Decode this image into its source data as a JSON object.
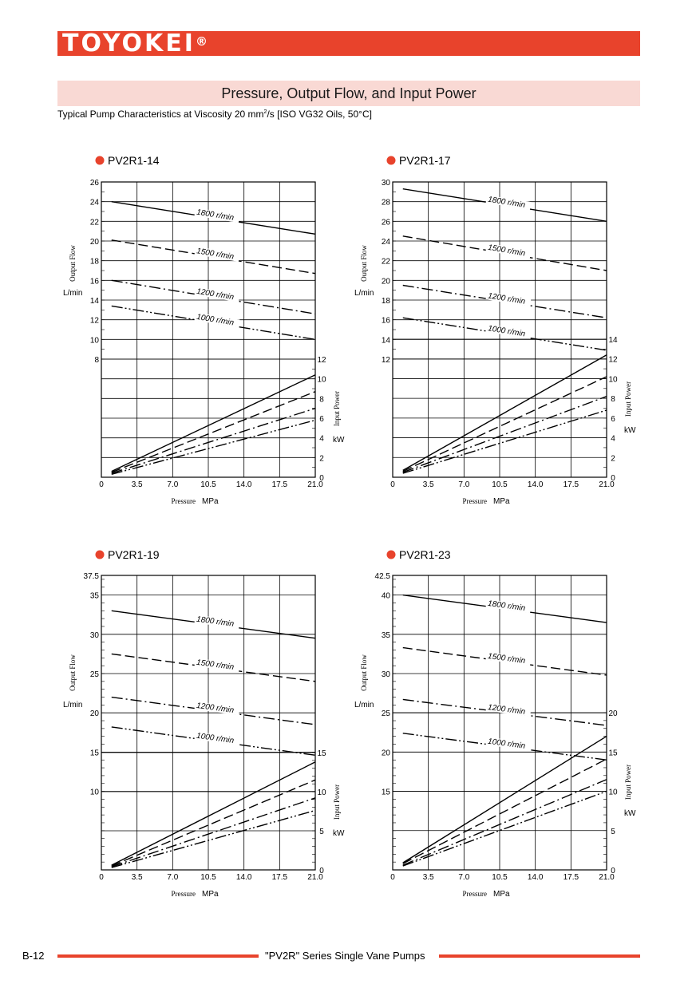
{
  "brand": {
    "logo_text": "TOYOKEI",
    "registered_mark": "®"
  },
  "section_title": "Pressure, Output Flow, and Input Power",
  "subtitle": {
    "text": "Typical Pump Characteristics at Viscosity 20 mm",
    "sup": "2",
    "text_after": "/s [ISO VG32 Oils, 50°C]"
  },
  "footer": {
    "page": "B-12",
    "series": "\"PV2R\" Series Single Vane Pumps"
  },
  "colors": {
    "accent": "#e8432c",
    "band": "#f9d9d4"
  },
  "chart_data": [
    {
      "type": "line",
      "title": "PV2R1-14",
      "xlabel": "Pressure",
      "xunit": "MPa",
      "ylabel": "Output Flow",
      "yunit": "L/min",
      "y2label": "Input Power",
      "y2unit": "kW",
      "xlim": [
        0,
        21.0
      ],
      "x_ticks": [
        "0",
        "3.5",
        "7.0",
        "10.5",
        "14.0",
        "17.5",
        "21.0"
      ],
      "flow_axis": {
        "min": 8,
        "max": 26,
        "ticks": [
          "8",
          "10",
          "12",
          "14",
          "16",
          "18",
          "20",
          "22",
          "24",
          "26"
        ]
      },
      "power_axis": {
        "min": 0,
        "max": 12,
        "ticks": [
          "0",
          "2",
          "4",
          "6",
          "8",
          "10",
          "12"
        ]
      },
      "flow_series": [
        {
          "name": "1800 r/min",
          "style": "solid",
          "x": [
            1,
            21
          ],
          "y": [
            24.0,
            20.7
          ]
        },
        {
          "name": "1500 r/min",
          "style": "dash",
          "x": [
            1,
            21
          ],
          "y": [
            20.1,
            16.7
          ]
        },
        {
          "name": "1200 r/min",
          "style": "dashdot",
          "x": [
            1,
            21
          ],
          "y": [
            16.0,
            12.6
          ]
        },
        {
          "name": "1000 r/min",
          "style": "dashdotdot",
          "x": [
            1,
            21
          ],
          "y": [
            13.4,
            10.0
          ]
        }
      ],
      "power_series": [
        {
          "style": "solid",
          "x": [
            1,
            21
          ],
          "y": [
            0.6,
            10.4
          ]
        },
        {
          "style": "dash",
          "x": [
            1,
            21
          ],
          "y": [
            0.5,
            8.7
          ]
        },
        {
          "style": "dashdot",
          "x": [
            1,
            21
          ],
          "y": [
            0.4,
            7.0
          ]
        },
        {
          "style": "dashdotdot",
          "x": [
            1,
            21
          ],
          "y": [
            0.3,
            5.8
          ]
        }
      ]
    },
    {
      "type": "line",
      "title": "PV2R1-17",
      "xlabel": "Pressure",
      "xunit": "MPa",
      "ylabel": "Output Flow",
      "yunit": "L/min",
      "y2label": "Input Power",
      "y2unit": "kW",
      "xlim": [
        0,
        21.0
      ],
      "x_ticks": [
        "0",
        "3.5",
        "7.0",
        "10.5",
        "14.0",
        "17.5",
        "21.0"
      ],
      "flow_axis": {
        "min": 12,
        "max": 30,
        "ticks": [
          "12",
          "14",
          "16",
          "18",
          "20",
          "22",
          "24",
          "26",
          "28",
          "30"
        ]
      },
      "power_axis": {
        "min": 0,
        "max": 14,
        "ticks": [
          "0",
          "2",
          "4",
          "6",
          "8",
          "10",
          "12",
          "14"
        ]
      },
      "flow_series": [
        {
          "name": "1800 r/min",
          "style": "solid",
          "x": [
            1,
            21
          ],
          "y": [
            29.3,
            26.0
          ]
        },
        {
          "name": "1500 r/min",
          "style": "dash",
          "x": [
            1,
            21
          ],
          "y": [
            24.5,
            21.0
          ]
        },
        {
          "name": "1200 r/min",
          "style": "dashdot",
          "x": [
            1,
            21
          ],
          "y": [
            19.5,
            16.2
          ]
        },
        {
          "name": "1000 r/min",
          "style": "dashdotdot",
          "x": [
            1,
            21
          ],
          "y": [
            16.2,
            12.9
          ]
        }
      ],
      "power_series": [
        {
          "style": "solid",
          "x": [
            1,
            21
          ],
          "y": [
            0.7,
            12.4
          ]
        },
        {
          "style": "dash",
          "x": [
            1,
            21
          ],
          "y": [
            0.6,
            10.2
          ]
        },
        {
          "style": "dashdot",
          "x": [
            1,
            21
          ],
          "y": [
            0.5,
            8.2
          ]
        },
        {
          "style": "dashdotdot",
          "x": [
            1,
            21
          ],
          "y": [
            0.4,
            6.8
          ]
        }
      ]
    },
    {
      "type": "line",
      "title": "PV2R1-19",
      "xlabel": "Pressure",
      "xunit": "MPa",
      "ylabel": "Output Flow",
      "yunit": "L/min",
      "y2label": "Input Power",
      "y2unit": "kW",
      "xlim": [
        0,
        21.0
      ],
      "x_ticks": [
        "0",
        "3.5",
        "7.0",
        "10.5",
        "14.0",
        "17.5",
        "21.0"
      ],
      "flow_axis": {
        "min": 0,
        "max": 37.5,
        "ticks": [
          "10",
          "15",
          "20",
          "25",
          "30",
          "35",
          "37.5"
        ]
      },
      "power_axis": {
        "min": 0,
        "max": 15,
        "ticks": [
          "0",
          "5",
          "10",
          "15"
        ]
      },
      "flow_series": [
        {
          "name": "1800 r/min",
          "style": "solid",
          "x": [
            1,
            21
          ],
          "y": [
            33.0,
            29.5
          ]
        },
        {
          "name": "1500 r/min",
          "style": "dash",
          "x": [
            1,
            21
          ],
          "y": [
            27.5,
            24.0
          ]
        },
        {
          "name": "1200 r/min",
          "style": "dashdot",
          "x": [
            1,
            21
          ],
          "y": [
            22.0,
            18.5
          ]
        },
        {
          "name": "1000 r/min",
          "style": "dashdotdot",
          "x": [
            1,
            21
          ],
          "y": [
            18.2,
            14.6
          ]
        }
      ],
      "power_series": [
        {
          "style": "solid",
          "x": [
            1,
            21
          ],
          "y": [
            0.6,
            13.8
          ]
        },
        {
          "style": "dash",
          "x": [
            1,
            21
          ],
          "y": [
            0.5,
            11.5
          ]
        },
        {
          "style": "dashdot",
          "x": [
            1,
            21
          ],
          "y": [
            0.4,
            9.2
          ]
        },
        {
          "style": "dashdotdot",
          "x": [
            1,
            21
          ],
          "y": [
            0.3,
            7.6
          ]
        }
      ]
    },
    {
      "type": "line",
      "title": "PV2R1-23",
      "xlabel": "Pressure",
      "xunit": "MPa",
      "ylabel": "Output Flow",
      "yunit": "L/min",
      "y2label": "Input Power",
      "y2unit": "kW",
      "xlim": [
        0,
        21.0
      ],
      "x_ticks": [
        "0",
        "3.5",
        "7.0",
        "10.5",
        "14.0",
        "17.5",
        "21.0"
      ],
      "flow_axis": {
        "min": 5,
        "max": 42.5,
        "ticks": [
          "15",
          "20",
          "25",
          "30",
          "35",
          "40",
          "42.5"
        ]
      },
      "power_axis": {
        "min": 0,
        "max": 20,
        "ticks": [
          "0",
          "5",
          "10",
          "15",
          "20"
        ]
      },
      "flow_series": [
        {
          "name": "1800 r/min",
          "style": "solid",
          "x": [
            1,
            21
          ],
          "y": [
            40.0,
            36.5
          ]
        },
        {
          "name": "1500 r/min",
          "style": "dash",
          "x": [
            1,
            21
          ],
          "y": [
            33.3,
            29.8
          ]
        },
        {
          "name": "1200 r/min",
          "style": "dashdot",
          "x": [
            1,
            21
          ],
          "y": [
            26.7,
            23.4
          ]
        },
        {
          "name": "1000 r/min",
          "style": "dashdotdot",
          "x": [
            1,
            21
          ],
          "y": [
            22.4,
            19.0
          ]
        }
      ],
      "power_series": [
        {
          "style": "solid",
          "x": [
            1,
            21
          ],
          "y": [
            0.9,
            17.0
          ]
        },
        {
          "style": "dash",
          "x": [
            1,
            21
          ],
          "y": [
            0.8,
            14.1
          ]
        },
        {
          "style": "dashdot",
          "x": [
            1,
            21
          ],
          "y": [
            0.6,
            11.5
          ]
        },
        {
          "style": "dashdotdot",
          "x": [
            1,
            21
          ],
          "y": [
            0.5,
            10.0
          ]
        }
      ]
    }
  ]
}
